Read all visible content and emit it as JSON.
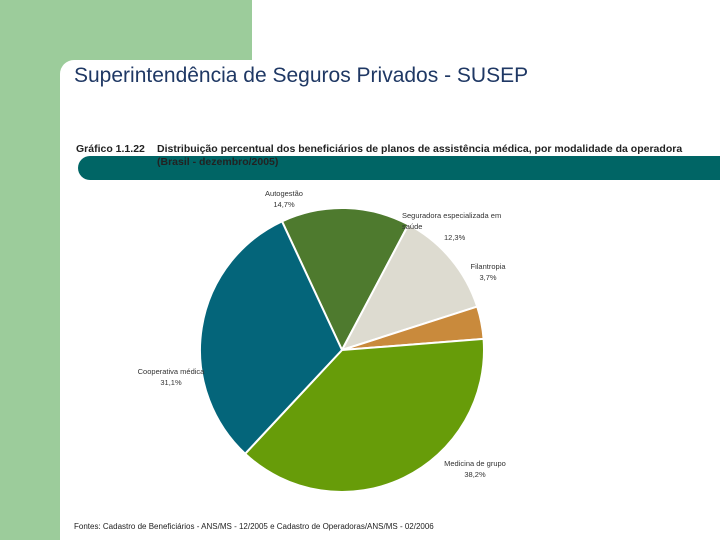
{
  "header": {
    "title": "Superintendência de Seguros Privados - SUSEP"
  },
  "chart_number": "Gráfico 1.1.22",
  "chart_data": {
    "type": "pie",
    "title": "Distribuição percentual dos beneficiários de planos de assistência médica, por modalidade da operadora (Brasil - dezembro/2005)",
    "slices": [
      {
        "label": "Autogestão",
        "value": 14.7,
        "value_text": "14,7%",
        "color": "#4e7a2e"
      },
      {
        "label": "Seguradora especializada em saúde",
        "value": 12.3,
        "value_text": "12,3%",
        "color": "#dddbd0"
      },
      {
        "label": "Filantropia",
        "value": 3.7,
        "value_text": "3,7%",
        "color": "#c98a3c"
      },
      {
        "label": "Medicina de grupo",
        "value": 38.2,
        "value_text": "38,2%",
        "color": "#679c09"
      },
      {
        "label": "Cooperativa médica",
        "value": 31.1,
        "value_text": "31,1%",
        "color": "#04657a"
      }
    ]
  },
  "footer": {
    "source": "Fontes: Cadastro de Beneficiários - ANS/MS - 12/2005 e Cadastro de Operadoras/ANS/MS - 02/2006"
  }
}
